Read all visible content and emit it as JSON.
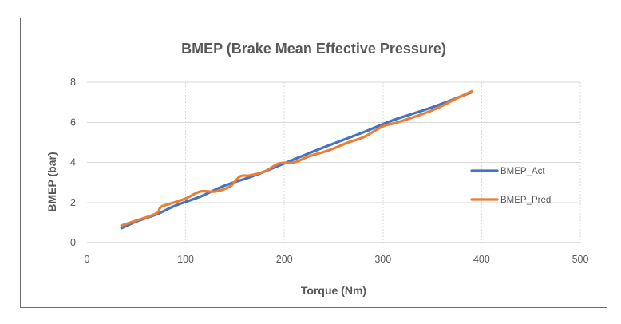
{
  "chart_data": {
    "type": "line",
    "title": "BMEP (Brake Mean Effective Pressure)",
    "xlabel": "Torque (Nm)",
    "ylabel": "BMEP (bar)",
    "xlim": [
      0,
      500
    ],
    "ylim": [
      0,
      8
    ],
    "xticks": [
      0,
      100,
      200,
      300,
      400,
      500
    ],
    "yticks": [
      0,
      2,
      4,
      6,
      8
    ],
    "grid": true,
    "legend_position": "right",
    "series": [
      {
        "name": "BMEP_Act",
        "color": "#4472c4",
        "x": [
          35,
          50,
          70,
          90,
          115,
          140,
          170,
          200,
          240,
          280,
          310,
          350,
          390
        ],
        "y": [
          0.72,
          1.05,
          1.4,
          1.85,
          2.3,
          2.85,
          3.35,
          3.95,
          4.75,
          5.5,
          6.1,
          6.75,
          7.5
        ]
      },
      {
        "name": "BMEP_Pred",
        "color": "#ed7d31",
        "x": [
          35,
          50,
          70,
          75,
          85,
          100,
          115,
          130,
          145,
          155,
          165,
          180,
          195,
          210,
          225,
          245,
          265,
          280,
          300,
          315,
          350,
          375,
          390
        ],
        "y": [
          0.85,
          1.1,
          1.45,
          1.78,
          1.95,
          2.2,
          2.55,
          2.55,
          2.8,
          3.3,
          3.35,
          3.55,
          3.95,
          4.0,
          4.3,
          4.6,
          5.0,
          5.25,
          5.8,
          6.0,
          6.6,
          7.2,
          7.55
        ]
      }
    ]
  }
}
